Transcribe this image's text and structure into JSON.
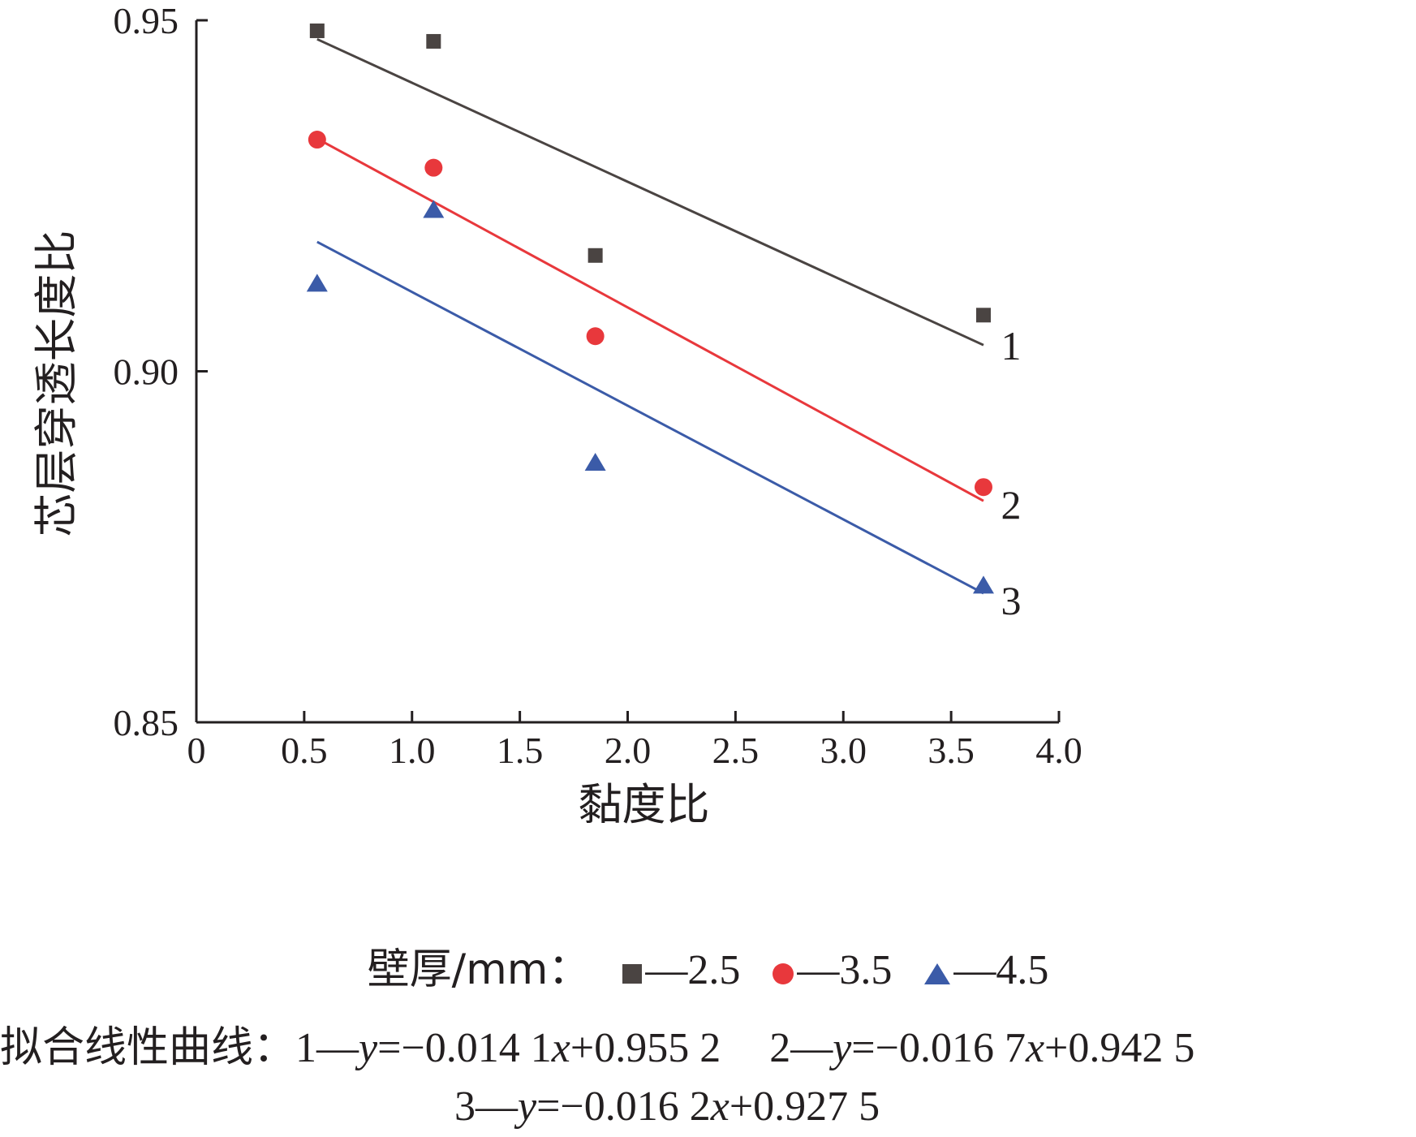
{
  "chart_data": {
    "type": "scatter",
    "xlabel": "黏度比",
    "ylabel": "芯层穿透长度比",
    "xlim": [
      0,
      4.0
    ],
    "ylim": [
      0.85,
      0.95
    ],
    "x_ticks": [
      "0",
      "0.5",
      "1.0",
      "1.5",
      "2.0",
      "2.5",
      "3.0",
      "3.5",
      "4.0"
    ],
    "y_ticks": [
      "0.85",
      "0.90",
      "0.95"
    ],
    "legend_title": "壁厚/mm：",
    "series": [
      {
        "name": "2.5",
        "marker": "square",
        "color": "#4a4442",
        "line_label": "1",
        "points": [
          [
            0.56,
            0.9485
          ],
          [
            1.1,
            0.947
          ],
          [
            1.85,
            0.9165
          ],
          [
            3.65,
            0.908
          ]
        ],
        "fit": {
          "slope": -0.0141,
          "intercept": 0.9552,
          "x_range": [
            0.56,
            3.65
          ]
        }
      },
      {
        "name": "3.5",
        "marker": "circle",
        "color": "#e8383c",
        "line_label": "2",
        "points": [
          [
            0.56,
            0.933
          ],
          [
            1.1,
            0.929
          ],
          [
            1.85,
            0.905
          ],
          [
            3.65,
            0.8835
          ]
        ],
        "fit": {
          "slope": -0.0167,
          "intercept": 0.9425,
          "x_range": [
            0.56,
            3.65
          ]
        }
      },
      {
        "name": "4.5",
        "marker": "triangle",
        "color": "#3b5ba8",
        "line_label": "3",
        "points": [
          [
            0.56,
            0.9125
          ],
          [
            1.1,
            0.923
          ],
          [
            1.85,
            0.887
          ],
          [
            3.65,
            0.8695
          ]
        ],
        "fit": {
          "slope": -0.0162,
          "intercept": 0.9275,
          "x_range": [
            0.56,
            3.65
          ]
        }
      }
    ],
    "fit_title": "拟合线性曲线：",
    "fit_equations": [
      {
        "id": "1",
        "text": "y=−0.014 1x+0.955 2"
      },
      {
        "id": "2",
        "text": "y=−0.016 7x+0.942 5"
      },
      {
        "id": "3",
        "text": "y=−0.016 2x+0.927 5"
      }
    ]
  }
}
